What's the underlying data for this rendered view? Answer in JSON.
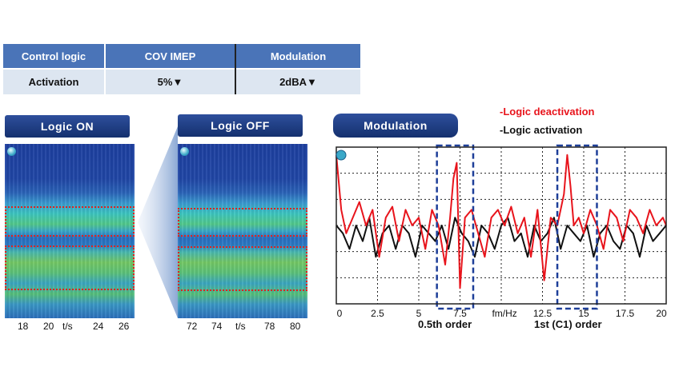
{
  "table": {
    "headers": [
      "Control logic",
      "COV IMEP",
      "Modulation"
    ],
    "row": [
      "Activation",
      "5%▼",
      "2dBA▼"
    ]
  },
  "panels": {
    "on": {
      "title": "Logic ON",
      "ticks": [
        "18",
        "20",
        "t/s",
        "24",
        "26"
      ]
    },
    "off": {
      "title": "Logic OFF",
      "ticks": [
        "72",
        "74",
        "t/s",
        "78",
        "80"
      ]
    },
    "modulation": {
      "title": "Modulation"
    }
  },
  "legend": {
    "deactivation": "-Logic deactivation",
    "activation": "-Logic activation"
  },
  "colors": {
    "deactivation": "#e8141c",
    "activation": "#111111",
    "header": "#4a74b8",
    "row": "#dde6f1",
    "highlight": "#1e3f99"
  },
  "annotations": {
    "half_order": "0.5th order",
    "first_order": "1st (C1) order"
  },
  "chart_data": [
    {
      "type": "heatmap",
      "title": "Logic ON",
      "x_ticks": [
        "18",
        "20",
        "t/s",
        "24",
        "26"
      ]
    },
    {
      "type": "heatmap",
      "title": "Logic OFF",
      "x_ticks": [
        "72",
        "74",
        "t/s",
        "78",
        "80"
      ]
    },
    {
      "type": "line",
      "title": "Modulation",
      "xlabel": "fm/Hz",
      "xlim": [
        0,
        20
      ],
      "x_ticks": [
        "0",
        "2.5",
        "5",
        "7.5",
        "fm/Hz",
        "12.5",
        "15",
        "17.5",
        "20"
      ],
      "ylim": [
        0,
        1
      ],
      "grid": true,
      "series": [
        {
          "name": "-Logic deactivation",
          "color": "#e8141c",
          "x": [
            0,
            0.3,
            0.6,
            1,
            1.4,
            1.8,
            2.2,
            2.6,
            3,
            3.4,
            3.8,
            4.2,
            4.6,
            5,
            5.4,
            5.8,
            6.2,
            6.6,
            6.9,
            7.1,
            7.3,
            7.5,
            7.8,
            8.2,
            8.6,
            9,
            9.4,
            9.8,
            10.2,
            10.6,
            11,
            11.4,
            11.8,
            12.2,
            12.6,
            13,
            13.4,
            13.8,
            14,
            14.2,
            14.4,
            14.7,
            15,
            15.4,
            15.8,
            16.2,
            16.6,
            17,
            17.4,
            17.8,
            18.2,
            18.6,
            19,
            19.4,
            19.8,
            20
          ],
          "values": [
            0.95,
            0.6,
            0.45,
            0.55,
            0.65,
            0.5,
            0.6,
            0.3,
            0.55,
            0.62,
            0.4,
            0.6,
            0.5,
            0.55,
            0.35,
            0.6,
            0.5,
            0.25,
            0.55,
            0.8,
            0.9,
            0.1,
            0.55,
            0.6,
            0.45,
            0.3,
            0.55,
            0.6,
            0.5,
            0.62,
            0.45,
            0.55,
            0.3,
            0.6,
            0.15,
            0.55,
            0.5,
            0.7,
            0.95,
            0.75,
            0.5,
            0.55,
            0.45,
            0.6,
            0.5,
            0.35,
            0.6,
            0.55,
            0.4,
            0.6,
            0.55,
            0.45,
            0.6,
            0.5,
            0.55,
            0.5
          ]
        },
        {
          "name": "-Logic activation",
          "color": "#111111",
          "x": [
            0,
            0.4,
            0.8,
            1.2,
            1.6,
            2,
            2.4,
            2.8,
            3.2,
            3.6,
            4,
            4.4,
            4.8,
            5.2,
            5.6,
            6,
            6.4,
            6.8,
            7.2,
            7.6,
            8,
            8.4,
            8.8,
            9.2,
            9.6,
            10,
            10.4,
            10.8,
            11.2,
            11.6,
            12,
            12.4,
            12.8,
            13.2,
            13.6,
            14,
            14.4,
            14.8,
            15.2,
            15.6,
            16,
            16.4,
            16.8,
            17.2,
            17.6,
            18,
            18.4,
            18.8,
            19.2,
            19.6,
            20
          ],
          "values": [
            0.5,
            0.45,
            0.35,
            0.5,
            0.4,
            0.55,
            0.3,
            0.45,
            0.5,
            0.35,
            0.5,
            0.45,
            0.3,
            0.5,
            0.45,
            0.4,
            0.5,
            0.35,
            0.55,
            0.45,
            0.4,
            0.3,
            0.5,
            0.45,
            0.35,
            0.5,
            0.55,
            0.4,
            0.45,
            0.3,
            0.5,
            0.4,
            0.45,
            0.55,
            0.35,
            0.5,
            0.45,
            0.4,
            0.5,
            0.3,
            0.45,
            0.5,
            0.4,
            0.35,
            0.5,
            0.45,
            0.3,
            0.5,
            0.4,
            0.45,
            0.5
          ]
        }
      ]
    }
  ]
}
